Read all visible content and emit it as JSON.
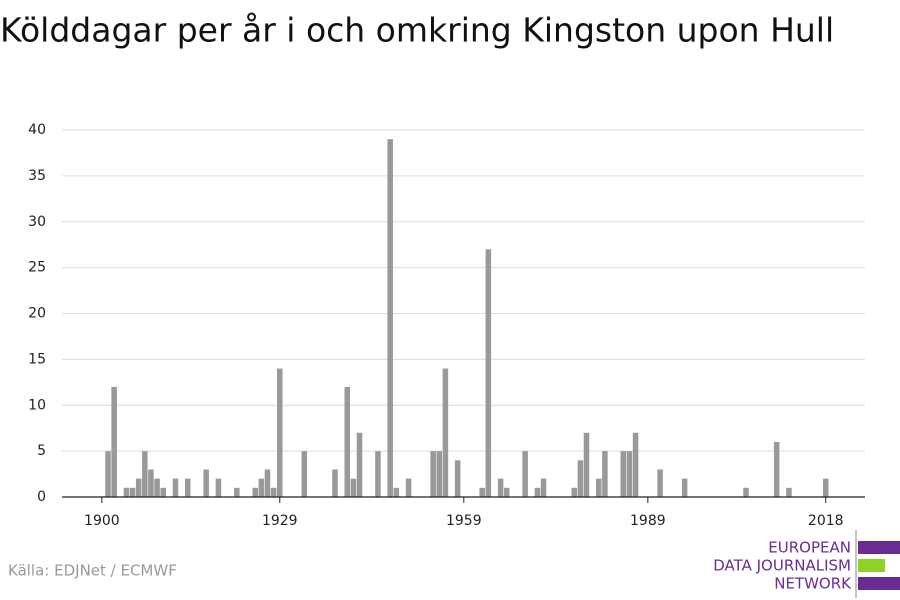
{
  "chart_data": {
    "type": "bar",
    "title": "Kölddagar per år i och omkring Kingston upon Hull",
    "x": [
      1901,
      1902,
      1904,
      1905,
      1906,
      1907,
      1908,
      1909,
      1910,
      1912,
      1914,
      1917,
      1919,
      1922,
      1925,
      1926,
      1927,
      1928,
      1929,
      1933,
      1938,
      1940,
      1941,
      1942,
      1945,
      1947,
      1948,
      1950,
      1954,
      1955,
      1956,
      1958,
      1962,
      1963,
      1965,
      1966,
      1969,
      1971,
      1972,
      1977,
      1978,
      1979,
      1981,
      1982,
      1985,
      1986,
      1987,
      1991,
      1995,
      2005,
      2010,
      2012,
      2018
    ],
    "values": [
      5,
      12,
      1,
      1,
      2,
      5,
      3,
      2,
      1,
      2,
      2,
      3,
      2,
      1,
      1,
      2,
      3,
      1,
      14,
      5,
      3,
      12,
      2,
      7,
      5,
      39,
      1,
      2,
      5,
      5,
      14,
      4,
      1,
      27,
      2,
      1,
      5,
      1,
      2,
      1,
      4,
      7,
      2,
      5,
      5,
      5,
      7,
      3,
      2,
      1,
      6,
      1,
      2
    ],
    "color": "#999999",
    "xlim": [
      1893.5,
      2024.4
    ],
    "xticks": [
      1900,
      1929,
      1959,
      1989,
      2018
    ],
    "ylim": [
      0,
      40
    ],
    "yticks": [
      0,
      5,
      10,
      15,
      20,
      25,
      30,
      35,
      40
    ],
    "grid": true,
    "source": "Källa: EDJNet / ECMWF"
  },
  "logo": {
    "lines": [
      "EUROPEAN",
      "DATA JOURNALISM",
      "NETWORK"
    ]
  }
}
